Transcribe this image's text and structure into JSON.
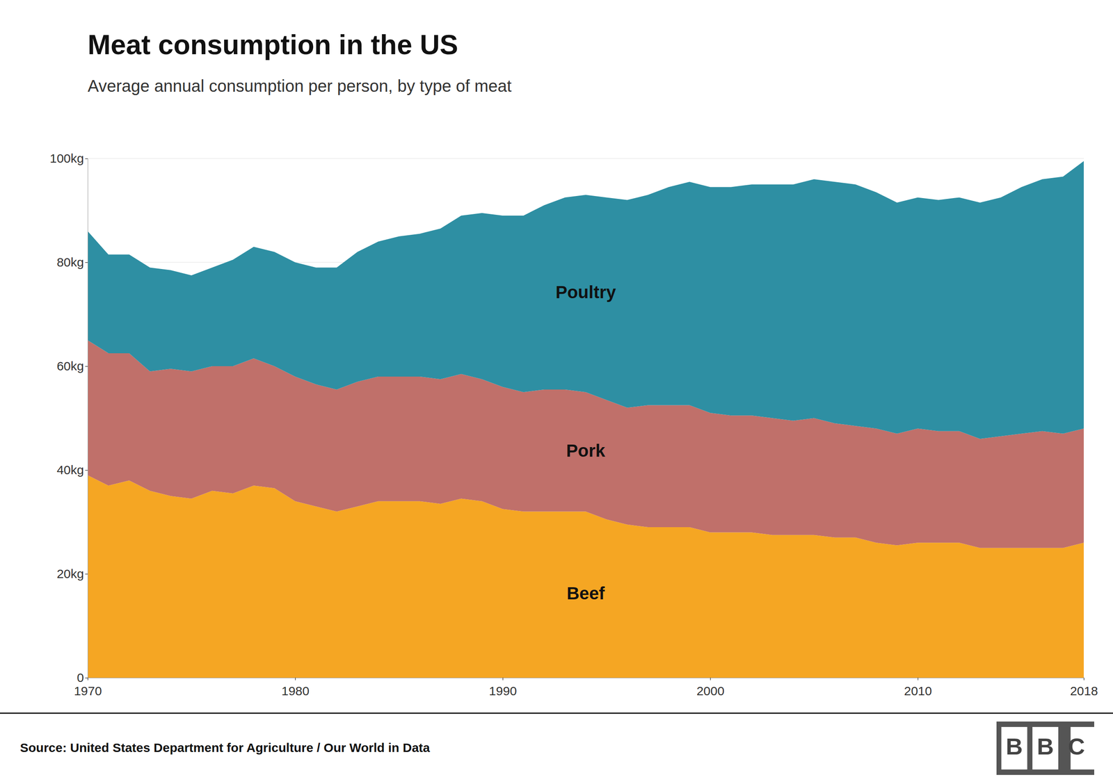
{
  "chart_data": {
    "type": "area",
    "stacked": true,
    "title": "Meat consumption in the US",
    "subtitle": "Average annual consumption per person, by type of meat",
    "source": "Source: United States Department for Agriculture / Our World in Data",
    "logo": "BBC",
    "x": [
      1970,
      1971,
      1972,
      1973,
      1974,
      1975,
      1976,
      1977,
      1978,
      1979,
      1980,
      1981,
      1982,
      1983,
      1984,
      1985,
      1986,
      1987,
      1988,
      1989,
      1990,
      1991,
      1992,
      1993,
      1994,
      1995,
      1996,
      1997,
      1998,
      1999,
      2000,
      2001,
      2002,
      2003,
      2004,
      2005,
      2006,
      2007,
      2008,
      2009,
      2010,
      2011,
      2012,
      2013,
      2014,
      2015,
      2016,
      2017,
      2018
    ],
    "series": [
      {
        "name": "Beef",
        "color": "#F5A623",
        "values": [
          39.0,
          37.0,
          38.0,
          36.0,
          35.0,
          34.5,
          36.0,
          35.5,
          37.0,
          36.5,
          34.0,
          33.0,
          32.0,
          33.0,
          34.0,
          34.0,
          34.0,
          33.5,
          34.5,
          34.0,
          32.5,
          32.0,
          32.0,
          32.0,
          32.0,
          30.5,
          29.5,
          29.0,
          29.0,
          29.0,
          28.0,
          28.0,
          28.0,
          27.5,
          27.5,
          27.5,
          27.0,
          27.0,
          26.0,
          25.5,
          26.0,
          26.0,
          26.0,
          25.0,
          25.0,
          25.0,
          25.0,
          25.0,
          26.0
        ]
      },
      {
        "name": "Pork",
        "color": "#C0706A",
        "values": [
          26.0,
          25.5,
          24.5,
          23.0,
          24.5,
          24.5,
          24.0,
          24.5,
          24.5,
          23.5,
          24.0,
          23.5,
          23.5,
          24.0,
          24.0,
          24.0,
          24.0,
          24.0,
          24.0,
          23.5,
          23.5,
          23.0,
          23.5,
          23.5,
          23.0,
          23.0,
          22.5,
          23.5,
          23.5,
          23.5,
          23.0,
          22.5,
          22.5,
          22.5,
          22.0,
          22.5,
          22.0,
          21.5,
          22.0,
          21.5,
          22.0,
          21.5,
          21.5,
          21.0,
          21.5,
          22.0,
          22.5,
          22.0,
          22.0
        ]
      },
      {
        "name": "Poultry",
        "color": "#2E8FA3",
        "values": [
          21.0,
          19.0,
          19.0,
          20.0,
          19.0,
          18.5,
          19.0,
          20.5,
          21.5,
          22.0,
          22.0,
          22.5,
          23.5,
          25.0,
          26.0,
          27.0,
          27.5,
          29.0,
          30.5,
          32.0,
          33.0,
          34.0,
          35.5,
          37.0,
          38.0,
          39.0,
          40.0,
          40.5,
          42.0,
          43.0,
          43.5,
          44.0,
          44.5,
          45.0,
          45.5,
          46.0,
          46.5,
          46.5,
          45.5,
          44.5,
          44.5,
          44.5,
          45.0,
          45.5,
          46.0,
          47.5,
          48.5,
          49.5,
          51.5
        ]
      }
    ],
    "xlim": [
      1970,
      2018
    ],
    "xticks": [
      1970,
      1980,
      1990,
      2000,
      2010,
      2018
    ],
    "ylim": [
      0,
      100
    ],
    "yticks": [
      0,
      {
        "value": 20,
        "label": "20kg"
      },
      {
        "value": 40,
        "label": "40kg"
      },
      {
        "value": 60,
        "label": "60kg"
      },
      {
        "value": 80,
        "label": "80kg"
      },
      {
        "value": 100,
        "label": "100kg"
      }
    ],
    "grid": true
  }
}
